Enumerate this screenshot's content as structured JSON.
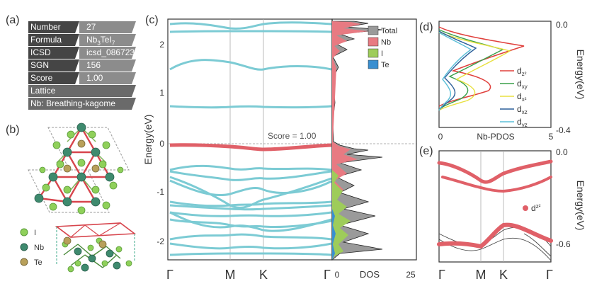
{
  "panel_labels": {
    "a": "(a)",
    "b": "(b)",
    "c": "(c)",
    "d": "(d)",
    "e": "(e)"
  },
  "info_table": {
    "number_key": "Number",
    "number_val": "27",
    "formula_key": "Formula",
    "formula_val_pre": "Nb",
    "formula_sub1": "3",
    "formula_val_mid": "TeI",
    "formula_sub2": "7",
    "icsd_key": "ICSD",
    "icsd_val": "icsd_086723",
    "sgn_key": "SGN",
    "sgn_val": "156",
    "score_key": "Score",
    "score_val": "1.00",
    "lattice_key": "Lattice",
    "lattice_val": "Nb: Breathing-kagome"
  },
  "structure_legend": [
    "I",
    "Nb",
    "Te"
  ],
  "colors": {
    "band": "#7ccbd4",
    "flat_band": "#e06068",
    "total": "#9a9a9a",
    "nb": "#e87a82",
    "i": "#9ecc5a",
    "te": "#3a8fd0"
  },
  "chart_data": [
    {
      "id": "c-bands",
      "type": "line",
      "title": "",
      "ylabel": "Energy(eV)",
      "ylim": [
        -2.4,
        2.4
      ],
      "yticks": [
        "2",
        "1",
        "0",
        "-1",
        "-2"
      ],
      "xticks": [
        "Γ",
        "M",
        "K",
        "Γ"
      ],
      "annotation": "Score = 1.00",
      "series_note": "cyan bands; red flat band at Fermi level"
    },
    {
      "id": "c-dos",
      "type": "area",
      "xlabel": "DOS",
      "xticks": [
        "0",
        "25"
      ],
      "legend": [
        "Total",
        "Nb",
        "I",
        "Te"
      ]
    },
    {
      "id": "d-pdos",
      "type": "line",
      "xlabel": "Nb-PDOS",
      "ylabel": "Energy(eV)",
      "xticks": [
        "0",
        "5"
      ],
      "yticks": [
        "0.0",
        "-0.4"
      ],
      "legend": [
        {
          "base": "d",
          "sub": "z²",
          "color": "#e0403c"
        },
        {
          "base": "d",
          "sub": "xy",
          "color": "#3aa04a"
        },
        {
          "base": "d",
          "sub": "x²",
          "color": "#e8e040"
        },
        {
          "base": "d",
          "sub": "xz",
          "color": "#2c5f9a"
        },
        {
          "base": "d",
          "sub": "yz",
          "color": "#5bbfd8"
        }
      ]
    },
    {
      "id": "e-fatband",
      "type": "scatter",
      "ylabel": "Energy(eV)",
      "yticks": [
        "0.0",
        "-0.6"
      ],
      "xticks": [
        "Γ",
        "M",
        "K",
        "Γ"
      ],
      "legend": [
        {
          "base": "d",
          "sub": "z²",
          "color": "#e06068"
        }
      ]
    }
  ]
}
